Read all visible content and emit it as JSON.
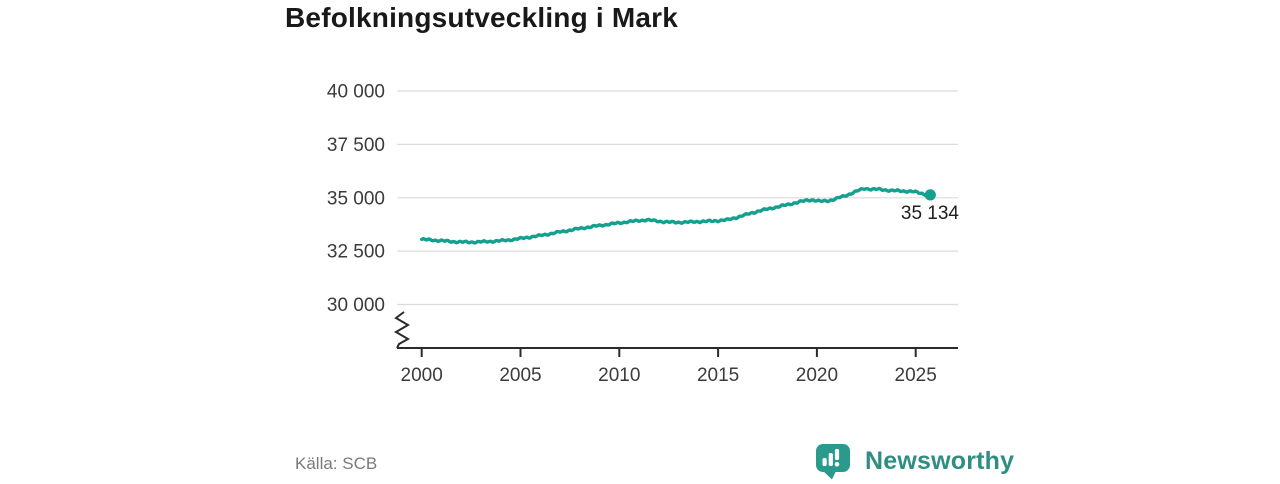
{
  "title": "Befolkningsutveckling i Mark",
  "source": "Källa: SCB",
  "brand": {
    "name": "Newsworthy",
    "color": "#2f8e82",
    "icon_color": "#2a9a8d",
    "icon": "bar-chart-speech-bubble-icon"
  },
  "chart_data": {
    "type": "line",
    "title": "Befolkningsutveckling i Mark",
    "xlabel": "",
    "ylabel": "",
    "grid": true,
    "axis_break": true,
    "xlim": [
      2000,
      2027.2
    ],
    "ylim": [
      30000,
      40000
    ],
    "series_color": "#14a08e",
    "y_ticks": [
      40000,
      37500,
      35000,
      32500,
      30000
    ],
    "y_tick_labels": [
      "40 000",
      "37 500",
      "35 000",
      "32 500",
      "30 000"
    ],
    "x_ticks": [
      2000,
      2005,
      2010,
      2015,
      2020,
      2025
    ],
    "x_tick_labels": [
      "2000",
      "2005",
      "2010",
      "2015",
      "2020",
      "2025"
    ],
    "end_label": "35 134",
    "end_value": 35134,
    "end_x": 2025.75,
    "points": [
      [
        2000.0,
        33050
      ],
      [
        2000.5,
        33020
      ],
      [
        2001.0,
        32985
      ],
      [
        2001.5,
        32950
      ],
      [
        2002.0,
        32925
      ],
      [
        2002.5,
        32920
      ],
      [
        2003.0,
        32935
      ],
      [
        2003.5,
        32955
      ],
      [
        2004.0,
        32985
      ],
      [
        2004.5,
        33030
      ],
      [
        2005.0,
        33090
      ],
      [
        2005.5,
        33160
      ],
      [
        2006.0,
        33230
      ],
      [
        2006.5,
        33310
      ],
      [
        2007.0,
        33400
      ],
      [
        2007.5,
        33480
      ],
      [
        2008.0,
        33560
      ],
      [
        2008.5,
        33630
      ],
      [
        2009.0,
        33700
      ],
      [
        2009.5,
        33760
      ],
      [
        2010.0,
        33820
      ],
      [
        2010.5,
        33880
      ],
      [
        2011.0,
        33930
      ],
      [
        2011.4,
        33960
      ],
      [
        2011.8,
        33920
      ],
      [
        2012.2,
        33880
      ],
      [
        2012.6,
        33855
      ],
      [
        2013.0,
        33845
      ],
      [
        2013.5,
        33860
      ],
      [
        2014.0,
        33880
      ],
      [
        2014.5,
        33900
      ],
      [
        2015.0,
        33925
      ],
      [
        2015.5,
        33970
      ],
      [
        2016.0,
        34090
      ],
      [
        2016.5,
        34230
      ],
      [
        2017.0,
        34360
      ],
      [
        2017.5,
        34470
      ],
      [
        2018.0,
        34570
      ],
      [
        2018.5,
        34670
      ],
      [
        2019.0,
        34780
      ],
      [
        2019.5,
        34880
      ],
      [
        2019.8,
        34900
      ],
      [
        2020.2,
        34830
      ],
      [
        2020.6,
        34860
      ],
      [
        2021.0,
        34960
      ],
      [
        2021.5,
        35110
      ],
      [
        2022.0,
        35300
      ],
      [
        2022.4,
        35430
      ],
      [
        2022.8,
        35400
      ],
      [
        2023.2,
        35390
      ],
      [
        2023.6,
        35350
      ],
      [
        2024.0,
        35330
      ],
      [
        2024.4,
        35310
      ],
      [
        2024.8,
        35300
      ],
      [
        2025.1,
        35250
      ],
      [
        2025.4,
        35180
      ],
      [
        2025.6,
        35140
      ],
      [
        2025.75,
        35134
      ]
    ]
  }
}
